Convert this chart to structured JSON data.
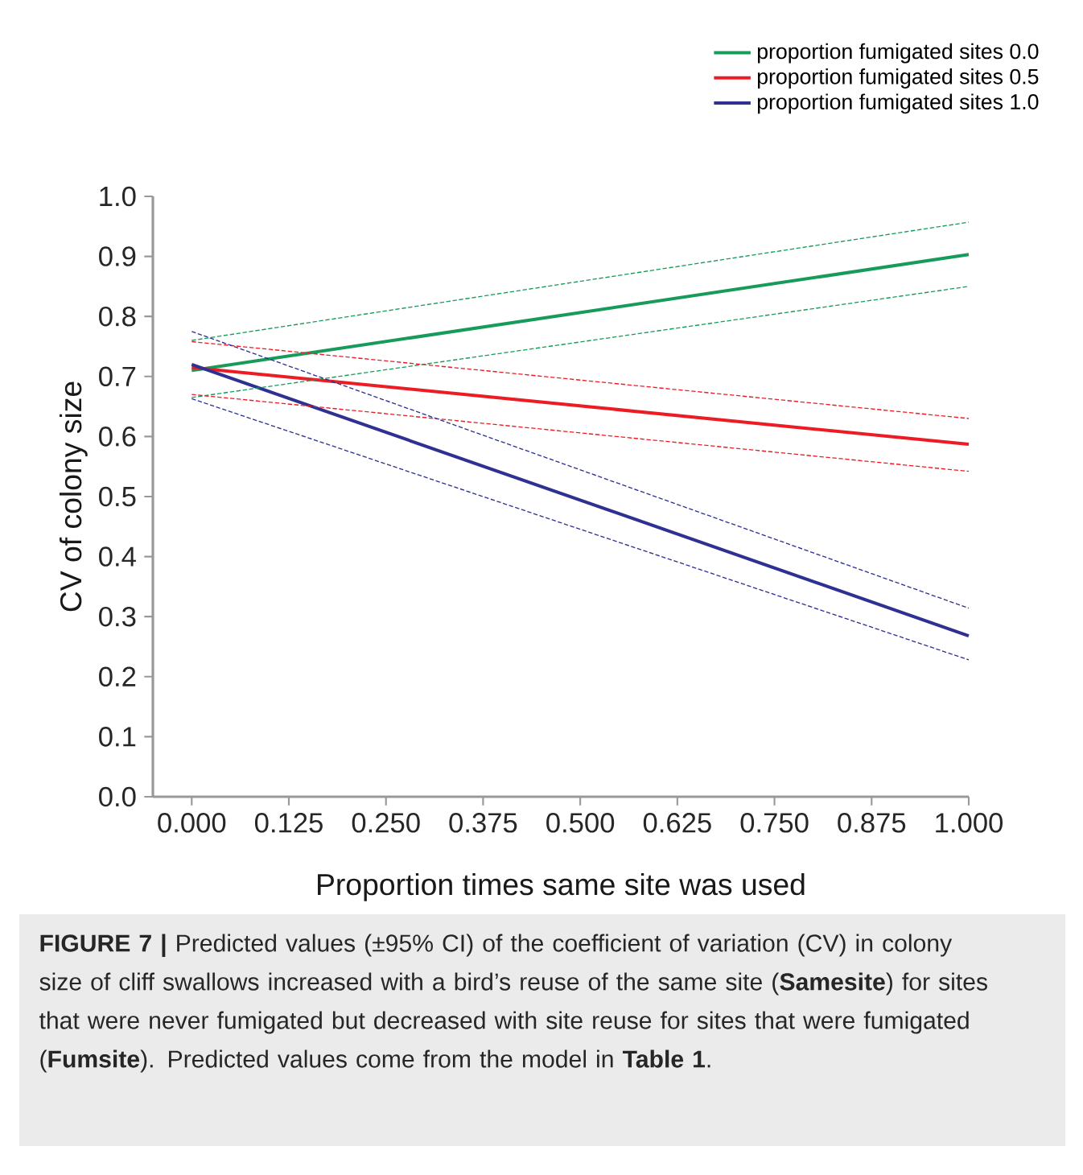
{
  "chart_data": {
    "type": "line",
    "xlabel": "Proportion times same site was used",
    "ylabel": "CV of colony size",
    "x": [
      0,
      1
    ],
    "series": [
      {
        "name": "proportion fumigated sites 0.0",
        "color": "#179b5a",
        "values": [
          0.71,
          0.903
        ]
      },
      {
        "name": "proportion fumigated sites 0.5",
        "color": "#ed1c24",
        "values": [
          0.715,
          0.587
        ]
      },
      {
        "name": "proportion fumigated sites 1.0",
        "color": "#2e3192",
        "values": [
          0.72,
          0.268
        ]
      },
      {
        "color": "#179b5a",
        "values": [
          0.76,
          0.957
        ],
        "line_style": "dashed"
      },
      {
        "color": "#179b5a",
        "values": [
          0.665,
          0.85
        ],
        "line_style": "dashed"
      },
      {
        "color": "#ed1c24",
        "values": [
          0.758,
          0.63
        ],
        "line_style": "dashed"
      },
      {
        "color": "#ed1c24",
        "values": [
          0.67,
          0.542
        ],
        "line_style": "dashed"
      },
      {
        "color": "#2e3192",
        "values": [
          0.775,
          0.314
        ],
        "line_style": "dashed"
      },
      {
        "color": "#2e3192",
        "values": [
          0.663,
          0.228
        ],
        "line_style": "dashed"
      }
    ],
    "xlim": [
      -0.05,
      1
    ],
    "ylim": [
      0,
      1
    ],
    "xticks": [
      {
        "value": 0,
        "label": "0.000"
      },
      {
        "value": 0.125,
        "label": "0.125"
      },
      {
        "value": 0.25,
        "label": "0.250"
      },
      {
        "value": 0.375,
        "label": "0.375"
      },
      {
        "value": 0.5,
        "label": "0.500"
      },
      {
        "value": 0.625,
        "label": "0.625"
      },
      {
        "value": 0.75,
        "label": "0.750"
      },
      {
        "value": 0.875,
        "label": "0.875"
      },
      {
        "value": 1,
        "label": "1.000"
      }
    ],
    "yticks": [
      {
        "value": 0,
        "label": "0.0"
      },
      {
        "value": 0.1,
        "label": "0.1"
      },
      {
        "value": 0.2,
        "label": "0.2"
      },
      {
        "value": 0.3,
        "label": "0.3"
      },
      {
        "value": 0.4,
        "label": "0.4"
      },
      {
        "value": 0.5,
        "label": "0.5"
      },
      {
        "value": 0.6,
        "label": "0.6"
      },
      {
        "value": 0.7,
        "label": "0.7"
      },
      {
        "value": 0.8,
        "label": "0.8"
      },
      {
        "value": 0.9,
        "label": "0.9"
      },
      {
        "value": 1,
        "label": "1.0"
      }
    ],
    "grid": false,
    "legend": "top right",
    "marker": "none",
    "line_style": "solid",
    "annotations": [
      "**FIGURE 7 |** Predicted values (±95% CI) of the coefficient of variation (CV) in colony size of cliff swallows increased with a bird’s reuse of the same site (**Samesite**) for sites that were never fumigated but decreased with site reuse for sites that were fumigated (**Fumsite**). Predicted values come from the model in **Table 1**."
    ]
  }
}
